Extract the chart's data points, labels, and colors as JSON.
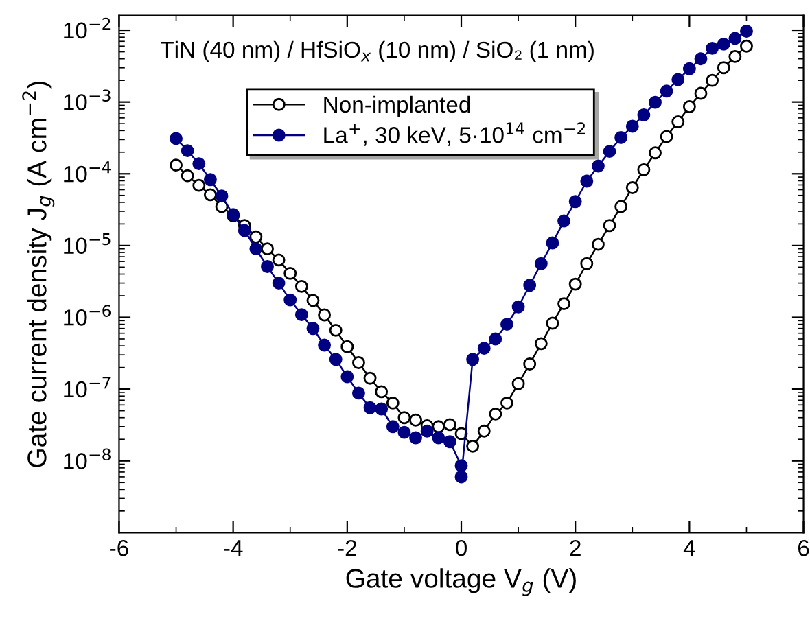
{
  "chart_data": {
    "type": "line",
    "xlabel": "Gate voltage V$_{g}$ (V)",
    "ylabel": "Gate current density J$_{g}$ (A cm$^{−2}$)",
    "annotations": [
      "TiN (40 nm) / HfSiO$_{x}$ (10 nm) / SiO₂ (1 nm)"
    ],
    "log": "y",
    "xlim": [
      -6,
      6
    ],
    "ylim": [
      1e-09,
      0.016
    ],
    "xticks": [
      -6,
      {
        "value": -5,
        "label": null
      },
      -4,
      {
        "value": -3,
        "label": null
      },
      -2,
      {
        "value": -1,
        "label": null
      },
      0,
      {
        "value": 1,
        "label": null
      },
      2,
      {
        "value": 3,
        "label": null
      },
      4,
      {
        "value": 5,
        "label": null
      },
      6
    ],
    "yticks": [
      {
        "value": 1e-08,
        "label": "10$^{−8}$"
      },
      {
        "value": 1e-07,
        "label": "10$^{−7}$"
      },
      {
        "value": 1e-06,
        "label": "10$^{−6}$"
      },
      {
        "value": 1e-05,
        "label": "10$^{−5}$"
      },
      {
        "value": 0.0001,
        "label": "10$^{−4}$"
      },
      {
        "value": 0.001,
        "label": "10$^{−3}$"
      },
      {
        "value": 0.01,
        "label": "10$^{−2}$"
      }
    ],
    "grid": false,
    "legend": "top left",
    "marker": "circle",
    "line_style": "solid",
    "series": [
      {
        "name": "Non-implanted",
        "color": "#000000",
        "x": [
          -5,
          -4.8,
          -4.6,
          -4.4,
          -4.2,
          -4,
          -3.8,
          -3.6,
          -3.4,
          -3.2,
          -3,
          -2.8,
          -2.6,
          -2.4,
          -2.2,
          -2,
          -1.8,
          -1.6,
          -1.4,
          -1.2,
          -1,
          -0.8,
          -0.6,
          -0.4,
          -0.2,
          0,
          0.2,
          0.4,
          0.6,
          0.8,
          1,
          1.2,
          1.4,
          1.6,
          1.8,
          2,
          2.2,
          2.4,
          2.6,
          2.8,
          3,
          3.2,
          3.4,
          3.6,
          3.8,
          4,
          4.2,
          4.4,
          4.6,
          4.8,
          5
        ],
        "values": [
          0.000132,
          9.4e-05,
          6.9e-05,
          5.1e-05,
          3.5e-05,
          2.6e-05,
          1.9e-05,
          1.32e-05,
          9e-06,
          6.3e-06,
          4.1e-06,
          2.7e-06,
          1.72e-06,
          1.08e-06,
          6.6e-07,
          3.9e-07,
          2.34e-07,
          1.42e-07,
          9.2e-08,
          6.4e-08,
          4e-08,
          3.7e-08,
          3.1e-08,
          3e-08,
          3.2e-08,
          2.4e-08,
          1.6e-08,
          2.6e-08,
          4.5e-08,
          6.4e-08,
          1.19e-07,
          2.24e-07,
          4.3e-07,
          8.3e-07,
          1.55e-06,
          2.9e-06,
          5.6e-06,
          1.04e-05,
          1.9e-05,
          3.5e-05,
          6.4e-05,
          0.000114,
          0.000196,
          0.00033,
          0.00053,
          0.00086,
          0.00132,
          0.002,
          0.003,
          0.0043,
          0.006
        ]
      },
      {
        "name": "La$^{+}$, 30 keV, 5·10$^{14}$ cm$^{−2}$",
        "color": "#000080",
        "x": [
          -5,
          -4.8,
          -4.6,
          -4.4,
          -4.2,
          -4,
          -3.8,
          -3.6,
          -3.4,
          -3.2,
          -3,
          -2.8,
          -2.6,
          -2.4,
          -2.2,
          -2,
          -1.8,
          -1.6,
          -1.4,
          -1.2,
          -1,
          -0.8,
          -0.6,
          -0.4,
          -0.2,
          0,
          0,
          0.2,
          0.4,
          0.6,
          0.8,
          1,
          1.2,
          1.4,
          1.6,
          1.8,
          2,
          2.2,
          2.4,
          2.6,
          2.8,
          3,
          3.2,
          3.4,
          3.6,
          3.8,
          4,
          4.2,
          4.4,
          4.6,
          4.8,
          5
        ],
        "values": [
          0.00031,
          0.00021,
          0.000138,
          8.3e-05,
          4.9e-05,
          2.7e-05,
          1.62e-05,
          9e-06,
          5.1e-06,
          3e-06,
          1.75e-06,
          1.09e-06,
          7e-07,
          4.1e-07,
          2.6e-07,
          1.49e-07,
          8.8e-08,
          5.5e-08,
          5.3e-08,
          3e-08,
          2.5e-08,
          2.1e-08,
          2.6e-08,
          2.1e-08,
          1.85e-08,
          8.6e-09,
          6e-09,
          2.6e-07,
          3.7e-07,
          5e-07,
          8e-07,
          1.4e-06,
          2.8e-06,
          5.6e-06,
          1.09e-05,
          2.2e-05,
          4.1e-05,
          7.9e-05,
          0.000128,
          0.000205,
          0.00032,
          0.00046,
          0.00066,
          0.00099,
          0.00142,
          0.00205,
          0.0029,
          0.004,
          0.0056,
          0.0064,
          0.0077,
          0.0097
        ]
      }
    ]
  }
}
